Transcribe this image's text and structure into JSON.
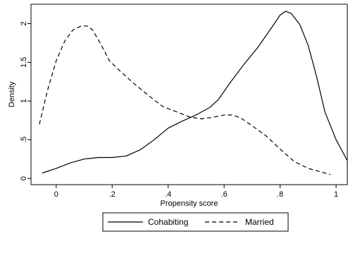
{
  "chart_data": {
    "type": "line",
    "title": "",
    "xlabel": "Propensity score",
    "ylabel": "Density",
    "xlim": [
      -0.09,
      1.04
    ],
    "ylim": [
      -0.08,
      2.25
    ],
    "x_ticks": [
      0,
      0.2,
      0.4,
      0.6,
      0.8,
      1
    ],
    "x_tick_labels": [
      "0",
      ".2",
      ".4",
      ".6",
      ".8",
      "1"
    ],
    "y_ticks": [
      0,
      0.5,
      1,
      1.5,
      2
    ],
    "y_tick_labels": [
      "0",
      ".5",
      "1",
      "1.5",
      "2"
    ],
    "grid": false,
    "legend_position": "bottom",
    "series": [
      {
        "name": "Cohabiting",
        "line_style": "solid",
        "color": "#000000",
        "x": [
          -0.05,
          0.0,
          0.05,
          0.1,
          0.15,
          0.2,
          0.25,
          0.3,
          0.35,
          0.4,
          0.45,
          0.5,
          0.55,
          0.58,
          0.62,
          0.67,
          0.72,
          0.77,
          0.8,
          0.82,
          0.84,
          0.87,
          0.9,
          0.93,
          0.96,
          1.0,
          1.04
        ],
        "values": [
          0.07,
          0.13,
          0.2,
          0.25,
          0.27,
          0.27,
          0.29,
          0.37,
          0.5,
          0.65,
          0.74,
          0.82,
          0.92,
          1.02,
          1.23,
          1.47,
          1.69,
          1.95,
          2.11,
          2.16,
          2.13,
          1.99,
          1.72,
          1.32,
          0.86,
          0.5,
          0.23
        ]
      },
      {
        "name": "Married",
        "line_style": "dashed",
        "color": "#000000",
        "x": [
          -0.06,
          -0.03,
          0.0,
          0.03,
          0.06,
          0.09,
          0.11,
          0.13,
          0.16,
          0.19,
          0.23,
          0.28,
          0.33,
          0.38,
          0.43,
          0.48,
          0.52,
          0.56,
          0.6,
          0.63,
          0.66,
          0.7,
          0.75,
          0.8,
          0.85,
          0.9,
          0.95,
          0.98
        ],
        "values": [
          0.7,
          1.15,
          1.52,
          1.77,
          1.92,
          1.97,
          1.97,
          1.92,
          1.73,
          1.52,
          1.38,
          1.22,
          1.07,
          0.93,
          0.86,
          0.79,
          0.77,
          0.79,
          0.82,
          0.82,
          0.78,
          0.68,
          0.55,
          0.38,
          0.22,
          0.13,
          0.08,
          0.05
        ]
      }
    ]
  }
}
